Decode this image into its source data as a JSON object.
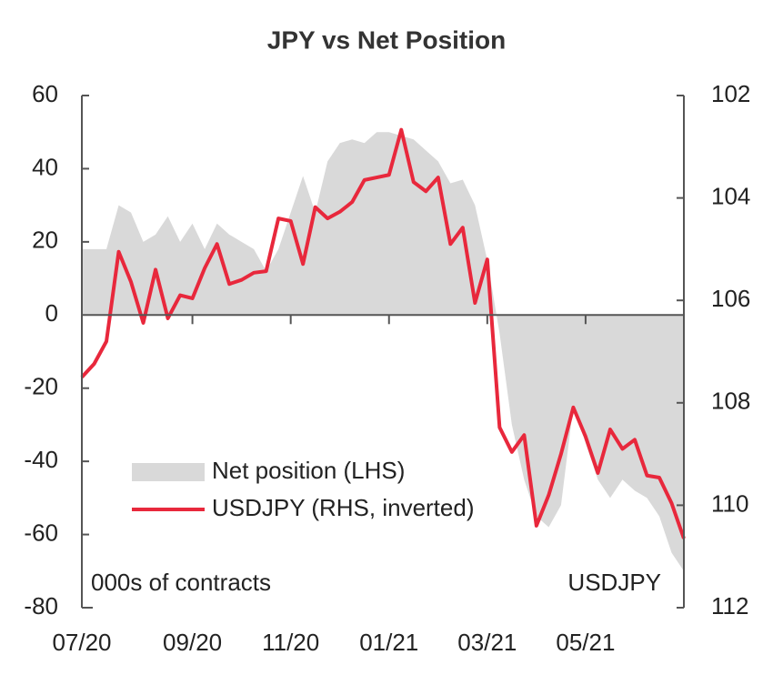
{
  "chart_data": {
    "type": "area-line",
    "title": "JPY vs Net Position",
    "categories": [
      "07/20",
      null,
      null,
      null,
      null,
      null,
      null,
      null,
      null,
      "09/20",
      null,
      null,
      null,
      null,
      null,
      null,
      null,
      "11/20",
      null,
      null,
      null,
      null,
      null,
      null,
      null,
      "01/21",
      null,
      null,
      null,
      null,
      null,
      null,
      null,
      "03/21",
      null,
      null,
      null,
      null,
      null,
      null,
      null,
      "05/21",
      null,
      null,
      null,
      null,
      null,
      null,
      null,
      null
    ],
    "series": [
      {
        "name": "Net position (LHS)",
        "color": "#d9d9d9",
        "kind": "area",
        "values": [
          18,
          18,
          18,
          30,
          28,
          20,
          22,
          27,
          20,
          25,
          18,
          25,
          22,
          20,
          18,
          12,
          18,
          28,
          38,
          28,
          42,
          47,
          48,
          47,
          50,
          50,
          49,
          48,
          45,
          42,
          36,
          37,
          30,
          15,
          -5,
          -30,
          -45,
          -55,
          -58,
          -52,
          -25,
          -35,
          -45,
          -50,
          -45,
          -48,
          -50,
          -55,
          -65,
          -70
        ]
      },
      {
        "name": "USDJPY (RHS, inverted)",
        "color": "#e8283c",
        "kind": "line",
        "axis": "y2",
        "values": [
          107.5,
          107.24,
          106.8,
          105.05,
          105.64,
          106.44,
          105.4,
          106.35,
          105.9,
          105.96,
          105.37,
          104.9,
          105.68,
          105.6,
          105.46,
          105.43,
          104.4,
          104.45,
          105.29,
          104.18,
          104.4,
          104.27,
          104.08,
          103.65,
          103.6,
          103.55,
          102.67,
          103.69,
          103.87,
          103.6,
          104.9,
          104.58,
          106.05,
          105.2,
          108.48,
          108.96,
          108.63,
          110.4,
          109.8,
          109.0,
          108.09,
          108.66,
          109.37,
          108.52,
          108.9,
          108.72,
          109.42,
          109.46,
          109.96,
          110.65
        ]
      }
    ],
    "ylim": [
      -80,
      60
    ],
    "yticks": [
      -80,
      -60,
      -40,
      -20,
      0,
      20,
      40,
      60
    ],
    "y2lim": [
      102,
      112
    ],
    "y2ticks": [
      102,
      104,
      106,
      108,
      110,
      112
    ],
    "y2_inverted": true,
    "annotations": [
      "000s of contracts",
      "USDJPY"
    ]
  }
}
